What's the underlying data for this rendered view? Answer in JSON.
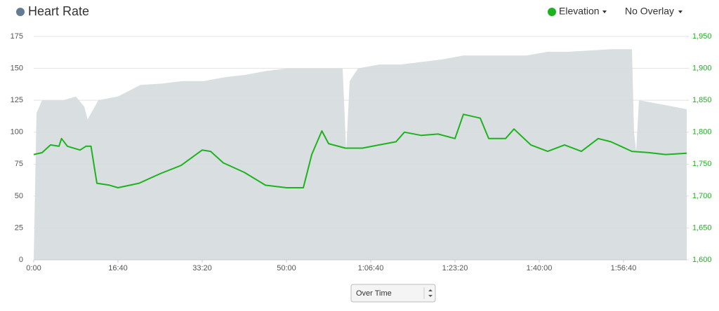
{
  "chart_data": {
    "type": "area-line",
    "series": [
      {
        "name": "Heart Rate",
        "color": "#d5dade",
        "dot_color": "#627d93",
        "x": [
          0,
          33,
          100,
          350,
          500,
          600,
          640,
          767,
          1000,
          1267,
          1517,
          1767,
          2017,
          2267,
          2517,
          2767,
          3017,
          3267,
          3517,
          3667,
          3708,
          3750,
          3850,
          4100,
          4350,
          4600,
          4850,
          5100,
          5350,
          5600,
          5850,
          6100,
          6350,
          6600,
          6850,
          7100,
          7125,
          7150,
          7183,
          7433,
          7750
        ],
        "values": [
          0,
          115,
          125,
          125,
          128,
          120,
          110,
          125,
          128,
          137,
          138,
          140,
          140,
          143,
          145,
          148,
          150,
          150,
          150,
          150,
          85,
          140,
          150,
          153,
          153,
          155,
          157,
          160,
          160,
          160,
          160,
          163,
          163,
          164,
          165,
          165,
          100,
          85,
          125,
          122,
          118
        ]
      },
      {
        "name": "Elevation",
        "color": "#1db31d",
        "axis": "y2",
        "x": [
          0,
          100,
          200,
          300,
          330,
          400,
          550,
          620,
          680,
          750,
          900,
          1000,
          1250,
          1500,
          1750,
          2000,
          2100,
          2250,
          2500,
          2750,
          3000,
          3200,
          3300,
          3420,
          3500,
          3700,
          3900,
          4100,
          4300,
          4400,
          4600,
          4800,
          5000,
          5100,
          5300,
          5400,
          5600,
          5700,
          5900,
          6100,
          6300,
          6500,
          6700,
          6850,
          7100,
          7300,
          7500,
          7750
        ],
        "values": [
          1765,
          1768,
          1780,
          1778,
          1790,
          1778,
          1772,
          1778,
          1778,
          1720,
          1717,
          1713,
          1720,
          1735,
          1748,
          1772,
          1770,
          1752,
          1737,
          1717,
          1713,
          1713,
          1765,
          1802,
          1782,
          1775,
          1775,
          1780,
          1785,
          1800,
          1795,
          1797,
          1790,
          1828,
          1822,
          1790,
          1790,
          1805,
          1780,
          1770,
          1780,
          1770,
          1790,
          1785,
          1770,
          1768,
          1765,
          1767
        ]
      }
    ],
    "xlim": [
      0,
      7750
    ],
    "xticks": [
      {
        "value": 0,
        "label": "0:00"
      },
      {
        "value": 1000,
        "label": "16:40"
      },
      {
        "value": 2000,
        "label": "33:20"
      },
      {
        "value": 3000,
        "label": "50:00"
      },
      {
        "value": 4000,
        "label": "1:06:40"
      },
      {
        "value": 5000,
        "label": "1:23:20"
      },
      {
        "value": 6000,
        "label": "1:40:00"
      },
      {
        "value": 7000,
        "label": "1:56:40"
      }
    ],
    "ylim": [
      0,
      175
    ],
    "yticks": [
      0,
      25,
      50,
      75,
      100,
      125,
      150,
      175
    ],
    "y2lim": [
      1600,
      1950
    ],
    "y2ticks": [
      {
        "value": 1600,
        "label": "1,600"
      },
      {
        "value": 1650,
        "label": "1,650"
      },
      {
        "value": 1700,
        "label": "1,700"
      },
      {
        "value": 1750,
        "label": "1,750"
      },
      {
        "value": 1800,
        "label": "1,800"
      },
      {
        "value": 1850,
        "label": "1,850"
      },
      {
        "value": 1900,
        "label": "1,900"
      },
      {
        "value": 1950,
        "label": "1,950"
      }
    ],
    "grid": true
  },
  "controls": {
    "overlay": "No Overlay",
    "mode": "Over Time"
  }
}
